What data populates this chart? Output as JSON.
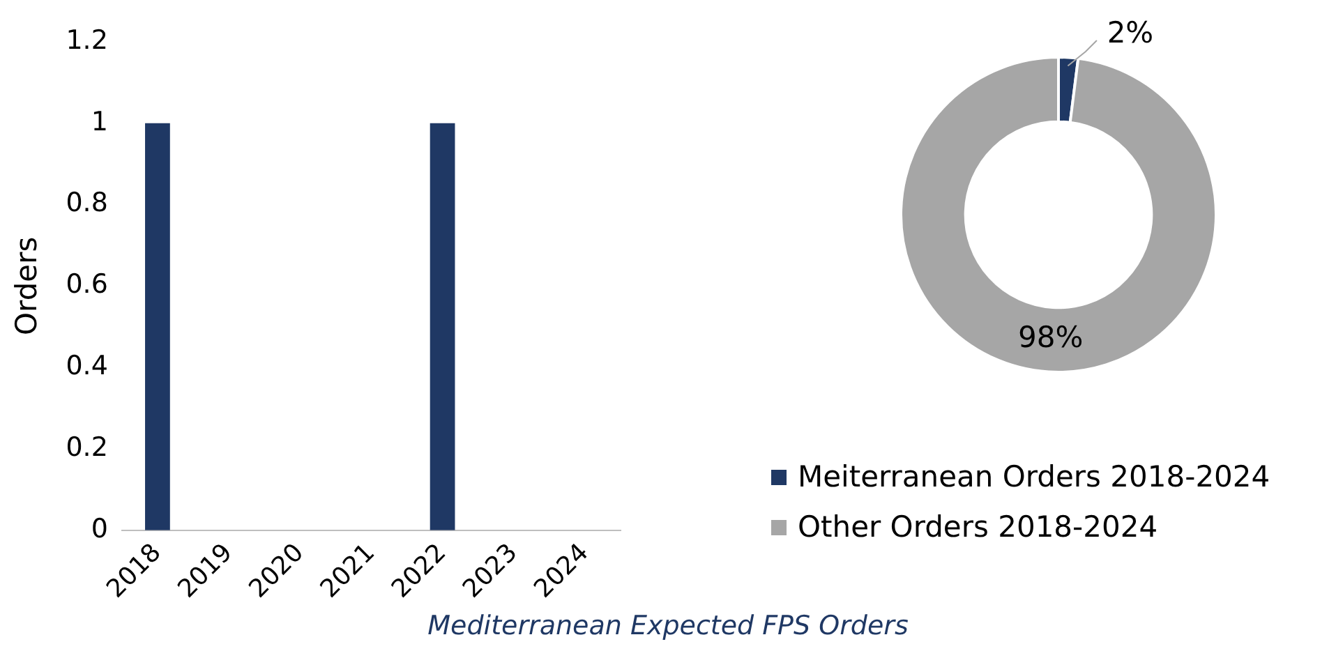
{
  "chart_data": [
    {
      "type": "bar",
      "ylabel": "Orders",
      "categories": [
        "2018",
        "2019",
        "2020",
        "2021",
        "2022",
        "2023",
        "2024"
      ],
      "values": [
        1,
        0,
        0,
        0,
        1,
        0,
        0
      ],
      "color": "#1f3864",
      "ylim": [
        0,
        1.2
      ],
      "yticks": [
        0,
        0.2,
        0.4,
        0.6,
        0.8,
        1,
        1.2
      ],
      "grid": false,
      "annotations": [
        "Mediterranean Expected FPS Orders"
      ]
    },
    {
      "type": "donut",
      "categories": [
        "Meiterranean Orders 2018-2024",
        "Other Orders 2018-2024"
      ],
      "values": [
        2,
        98
      ],
      "colors": [
        "#1f3864",
        "#a6a6a6"
      ],
      "value_labels": [
        "2%",
        "98%"
      ],
      "legend": "bottom"
    }
  ]
}
